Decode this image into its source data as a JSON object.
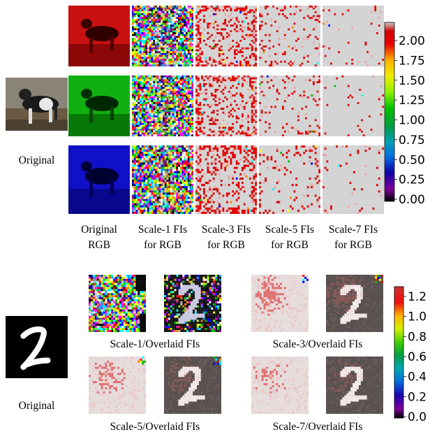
{
  "top_panel": {
    "row_labels": [
      "Original"
    ],
    "col_captions": [
      [
        "Original",
        "RGB"
      ],
      [
        "Scale-1 FIs",
        "for RGB"
      ],
      [
        "Scale-3 FIs",
        "for RGB"
      ],
      [
        "Scale-5 FIs",
        "for RGB"
      ],
      [
        "Scale-7 FIs",
        "for RGB"
      ]
    ],
    "colorbar": {
      "ticks": [
        "2.00",
        "1.75",
        "1.50",
        "1.25",
        "1.00",
        "0.75",
        "0.50",
        "0.25",
        "0.00"
      ],
      "range": [
        0,
        2.2
      ],
      "colormap": "nipy_spectral"
    }
  },
  "bottom_panel": {
    "original_label": "Original",
    "group_captions": [
      "Scale-1/Overlaid FIs",
      "Scale-3/Overlaid FIs",
      "Scale-5/Overlaid FIs",
      "Scale-7/Overlaid FIs"
    ],
    "colorbar": {
      "ticks": [
        "1.2",
        "1.0",
        "0.8",
        "0.6",
        "0.4",
        "0.2",
        "0.0"
      ],
      "range": [
        0,
        1.3
      ],
      "colormap": "nipy_spectral"
    }
  },
  "colors": {
    "red_channel": "#c00000",
    "green_channel": "#00a000",
    "blue_channel": "#0000c0",
    "fi_background": "#d4d4d4",
    "fi_hot": "#e00000"
  }
}
